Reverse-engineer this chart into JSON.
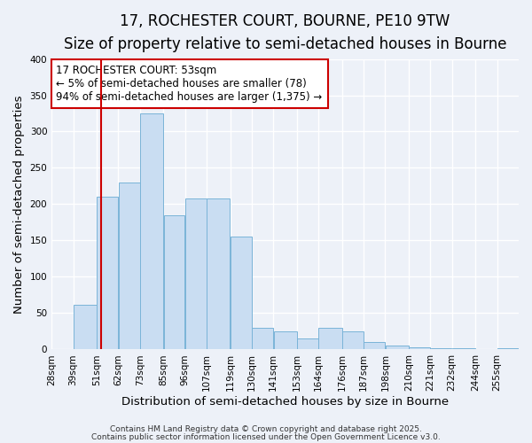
{
  "title": "17, ROCHESTER COURT, BOURNE, PE10 9TW",
  "subtitle": "Size of property relative to semi-detached houses in Bourne",
  "xlabel": "Distribution of semi-detached houses by size in Bourne",
  "ylabel": "Number of semi-detached properties",
  "bin_labels": [
    "28sqm",
    "39sqm",
    "51sqm",
    "62sqm",
    "73sqm",
    "85sqm",
    "96sqm",
    "107sqm",
    "119sqm",
    "130sqm",
    "141sqm",
    "153sqm",
    "164sqm",
    "176sqm",
    "187sqm",
    "198sqm",
    "210sqm",
    "221sqm",
    "232sqm",
    "244sqm",
    "255sqm"
  ],
  "bin_edges": [
    28,
    39,
    51,
    62,
    73,
    85,
    96,
    107,
    119,
    130,
    141,
    153,
    164,
    176,
    187,
    198,
    210,
    221,
    232,
    244,
    255,
    266
  ],
  "bar_heights": [
    0,
    62,
    210,
    230,
    325,
    185,
    208,
    208,
    155,
    30,
    25,
    15,
    30,
    25,
    10,
    5,
    3,
    2,
    2,
    1,
    2
  ],
  "bar_color": "#c9ddf2",
  "bar_edge_color": "#7ab4d8",
  "vline_x": 53,
  "vline_color": "#cc0000",
  "annotation_title": "17 ROCHESTER COURT: 53sqm",
  "annotation_line1": "← 5% of semi-detached houses are smaller (78)",
  "annotation_line2": "94% of semi-detached houses are larger (1,375) →",
  "annotation_box_color": "#ffffff",
  "annotation_box_edge": "#cc0000",
  "ylim": [
    0,
    400
  ],
  "background_color": "#edf1f8",
  "grid_color": "#ffffff",
  "title_fontsize": 12,
  "subtitle_fontsize": 10,
  "axis_label_fontsize": 9.5,
  "tick_fontsize": 7.5,
  "annotation_fontsize": 8.5,
  "footnote_fontsize": 6.5,
  "footnote1": "Contains HM Land Registry data © Crown copyright and database right 2025.",
  "footnote2": "Contains public sector information licensed under the Open Government Licence v3.0."
}
